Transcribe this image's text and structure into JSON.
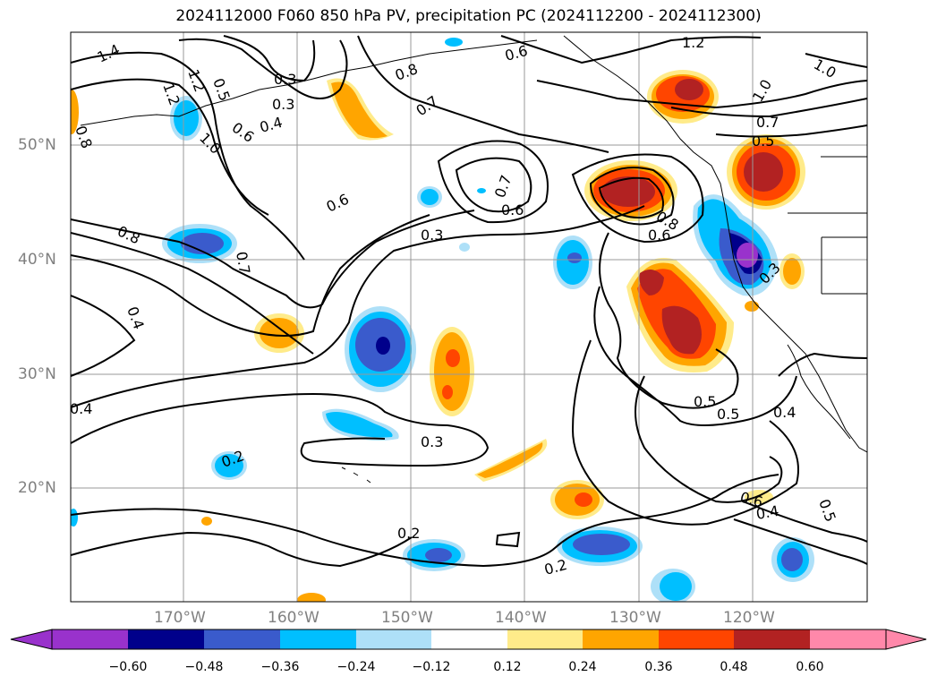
{
  "title": "2024112000 F060 850 hPa PV, precipitation PC (2024112200 - 2024112300)",
  "map": {
    "lat_labels": [
      "50°N",
      "40°N",
      "30°N",
      "20°N"
    ],
    "lon_labels": [
      "170°W",
      "160°W",
      "150°W",
      "140°W",
      "130°W",
      "120°W"
    ],
    "contour_labels": [
      "1.4",
      "1.2",
      "0.8",
      "1.2",
      "0.5",
      "0.3",
      "0.3",
      "0.4",
      "0.6",
      "1.0",
      "0.8",
      "0.7",
      "0.6",
      "1.2",
      "1.0",
      "1.0",
      "0.7",
      "0.5",
      "0.7",
      "0.6",
      "0.6",
      "0.3",
      "0.8",
      "0.6",
      "0.8",
      "0.7",
      "0.4",
      "0.4",
      "0.3",
      "0.2",
      "0.2",
      "0.2",
      "0.5",
      "0.5",
      "0.4",
      "0.6",
      "0.4",
      "0.5",
      "0.3"
    ]
  },
  "colorbar": {
    "ticks": [
      "−0.60",
      "−0.48",
      "−0.36",
      "−0.24",
      "−0.12",
      "0.12",
      "0.24",
      "0.36",
      "0.48",
      "0.60"
    ],
    "colors": [
      "#9932cc",
      "#00008b",
      "#3a5bcc",
      "#00bfff",
      "#aee0f8",
      "#ffffff",
      "#ffeb8a",
      "#ffa500",
      "#ff4500",
      "#b22222",
      "#ff88aa"
    ]
  }
}
